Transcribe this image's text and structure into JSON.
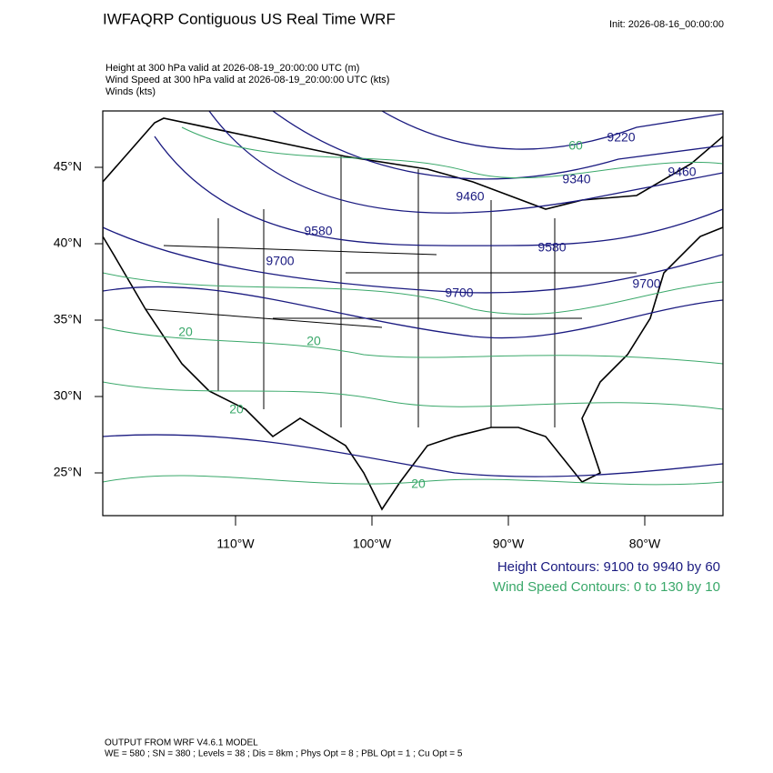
{
  "header": {
    "title": "IWFAQRP Contiguous US Real Time WRF",
    "init": "Init: 2026-08-16_00:00:00",
    "fields": [
      "Height at 300 hPa valid at 2026-08-19_20:00:00 UTC   (m)",
      "Wind Speed at 300 hPa valid at 2026-08-19_20:00:00 UTC   (kts)",
      "Winds   (kts)"
    ]
  },
  "map": {
    "lat_labels": [
      "45°N",
      "40°N",
      "35°N",
      "30°N",
      "25°N"
    ],
    "lon_labels": [
      "110°W",
      "100°W",
      "90°W",
      "80°W"
    ],
    "height_labels": [
      "9220",
      "9340",
      "9460",
      "9460",
      "9580",
      "9580",
      "9700",
      "9700",
      "9700"
    ],
    "speed_labels": [
      "60",
      "20",
      "20",
      "20",
      "20"
    ]
  },
  "legend": {
    "height": "Height Contours: 9100 to 9940 by 60",
    "speed": "Wind Speed Contours: 0 to 130 by 10"
  },
  "footer": {
    "model": "OUTPUT FROM WRF V4.6.1 MODEL",
    "settings": "WE = 580 ; SN = 380 ; Levels = 38 ; Dis = 8km ; Phys Opt = 8 ; PBL Opt = 1 ; Cu Opt = 5"
  }
}
